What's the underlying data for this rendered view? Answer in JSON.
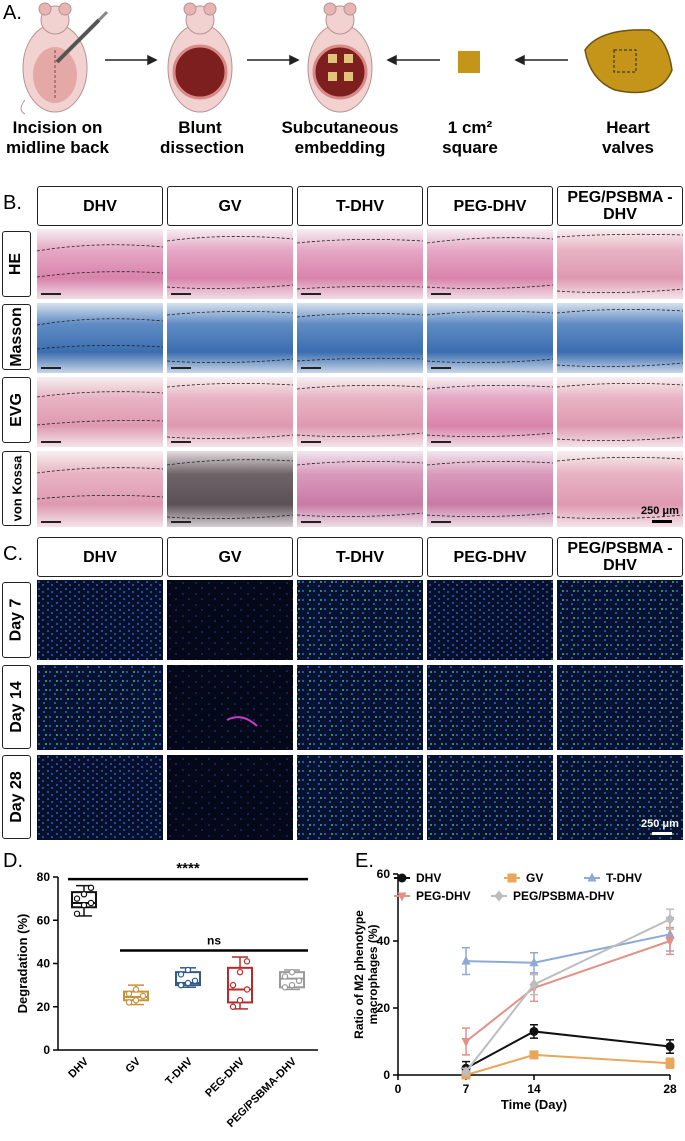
{
  "panel_a": {
    "label": "A.",
    "steps": [
      {
        "caption": "Incision on midline back",
        "icon": "rat-incision-icon"
      },
      {
        "caption": "Blunt dissection",
        "icon": "rat-dissection-icon"
      },
      {
        "caption": "Subcutaneous embedding",
        "icon": "rat-embedding-icon"
      },
      {
        "caption": "1 cm² square",
        "icon": "tissue-square-icon"
      },
      {
        "caption": "Heart valves",
        "icon": "heart-valve-icon"
      }
    ]
  },
  "panel_b": {
    "label": "B.",
    "columns": [
      "DHV",
      "GV",
      "T-DHV",
      "PEG-DHV",
      "PEG/PSBMA -DHV"
    ],
    "rows": [
      "HE",
      "Masson",
      "EVG",
      "von Kossa"
    ],
    "scale": "250 μm"
  },
  "panel_c": {
    "label": "C.",
    "columns": [
      "DHV",
      "GV",
      "T-DHV",
      "PEG-DHV",
      "PEG/PSBMA -DHV"
    ],
    "rows": [
      "Day 7",
      "Day 14",
      "Day 28"
    ],
    "scale": "250 μm"
  },
  "panel_d": {
    "label": "D."
  },
  "panel_e": {
    "label": "E."
  },
  "chart_data": [
    {
      "type": "box",
      "ylabel": "Degradation (%)",
      "ylim": [
        0,
        80
      ],
      "yticks": [
        0,
        20,
        40,
        60,
        80
      ],
      "categories": [
        "DHV",
        "GV",
        "T-DHV",
        "PEG-DHV",
        "PEG/PSBMA-DHV"
      ],
      "colors": [
        "#111111",
        "#c8913a",
        "#2f5a8c",
        "#b52a2a",
        "#9a9a9a"
      ],
      "boxes": [
        {
          "min": 62,
          "q1": 66,
          "median": 68,
          "q3": 73,
          "max": 76,
          "points": [
            63,
            67,
            68,
            70,
            72,
            75
          ]
        },
        {
          "min": 21,
          "q1": 23,
          "median": 24.5,
          "q3": 27,
          "max": 30,
          "points": [
            22,
            23,
            25,
            26,
            28
          ]
        },
        {
          "min": 29,
          "q1": 30,
          "median": 31,
          "q3": 36,
          "max": 38,
          "points": [
            30,
            31,
            32,
            35,
            37
          ]
        },
        {
          "min": 19,
          "q1": 22,
          "median": 28,
          "q3": 38,
          "max": 43,
          "points": [
            20,
            23,
            28,
            30,
            36,
            41
          ]
        },
        {
          "min": 28,
          "q1": 29,
          "median": 33,
          "q3": 36,
          "max": 37,
          "points": [
            29,
            30,
            32,
            34,
            36
          ]
        }
      ],
      "annotations": [
        {
          "text": "****",
          "from": "DHV",
          "to": "PEG/PSBMA-DHV",
          "y": 79
        },
        {
          "text": "ns",
          "from": "GV",
          "to": "PEG/PSBMA-DHV",
          "y": 46
        }
      ]
    },
    {
      "type": "line",
      "xlabel": "Time (Day)",
      "ylabel": "Ratio of M2 phenotype macrophages (%)",
      "xlim": [
        0,
        28
      ],
      "ylim": [
        0,
        60
      ],
      "xticks": [
        0,
        7,
        14,
        28
      ],
      "yticks": [
        0,
        20,
        40,
        60
      ],
      "x": [
        7,
        14,
        28
      ],
      "legend_placement": "top",
      "series": [
        {
          "name": "DHV",
          "color": "#111111",
          "marker": "circle",
          "values": [
            2,
            13,
            8.5
          ],
          "err": [
            2,
            2,
            2
          ]
        },
        {
          "name": "GV",
          "color": "#e8a75a",
          "marker": "square",
          "values": [
            0,
            6,
            3.5
          ],
          "err": [
            0.5,
            1,
            1.5
          ]
        },
        {
          "name": "T-DHV",
          "color": "#8fa9d6",
          "marker": "triangle-up",
          "values": [
            34,
            33.5,
            42
          ],
          "err": [
            4,
            3,
            5
          ]
        },
        {
          "name": "PEG-DHV",
          "color": "#e39086",
          "marker": "triangle-down",
          "values": [
            10,
            26,
            40
          ],
          "err": [
            4,
            4,
            4
          ]
        },
        {
          "name": "PEG/PSBMA-DHV",
          "color": "#bdbdbd",
          "marker": "diamond",
          "values": [
            1,
            27,
            46.5
          ],
          "err": [
            1,
            3,
            3
          ]
        }
      ]
    }
  ]
}
